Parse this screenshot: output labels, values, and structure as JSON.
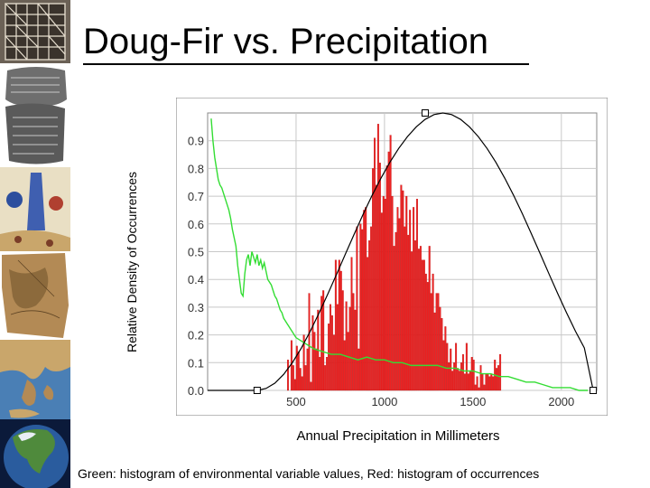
{
  "title": "Doug-Fir vs. Precipitation",
  "caption": "Green: histogram of environmental variable values, Red: histogram of occurrences",
  "sidebar": {
    "thumbnails": [
      "grid-diagram-thumbnail",
      "clay-tablet-thumbnail",
      "medieval-map-thumbnail",
      "parchment-map-thumbnail",
      "greece-satellite-thumbnail",
      "north-america-globe-thumbnail"
    ]
  },
  "colors": {
    "occurrences": "#ee2222",
    "environment": "#33dd33",
    "curve": "#000000",
    "grid": "#c8c8c8"
  },
  "chart_data": {
    "type": "bar",
    "title": "Doug-Fir vs. Precipitation",
    "xlabel": "Annual Precipitation in Millimeters",
    "ylabel": "Relative Density of Occurrences",
    "xlim": [
      0,
      2200
    ],
    "ylim": [
      0,
      1.0
    ],
    "x_ticks": [
      500,
      1000,
      1500,
      2000
    ],
    "x_tick_labels": [
      "500",
      "1000",
      "1500",
      "2000"
    ],
    "y_ticks": [
      0.0,
      0.1,
      0.2,
      0.3,
      0.4,
      0.5,
      0.6,
      0.7,
      0.8,
      0.9
    ],
    "y_tick_labels": [
      "0.0",
      "0.1",
      "0.2",
      "0.3",
      "0.4",
      "0.5",
      "0.6",
      "0.7",
      "0.8",
      "0.9"
    ],
    "grid": true,
    "series": [
      {
        "kind": "bar",
        "bin_start": 450,
        "bin_width": 10,
        "values": [
          0.11,
          0,
          0.18,
          0.09,
          0.04,
          0.16,
          0.14,
          0.08,
          0.05,
          0.2,
          0.09,
          0.15,
          0.35,
          0.03,
          0.27,
          0.21,
          0.15,
          0.29,
          0.12,
          0.34,
          0.36,
          0.09,
          0.12,
          0.24,
          0.31,
          0.27,
          0.2,
          0.47,
          0.31,
          0.47,
          0.43,
          0.36,
          0.18,
          0.32,
          0.21,
          0.3,
          0.48,
          0.35,
          0.29,
          0.59,
          0.15,
          0.6,
          0.58,
          0.65,
          0.66,
          0.48,
          0.54,
          0.59,
          0.8,
          0.91,
          0.74,
          0.96,
          0.82,
          0.64,
          0.7,
          0.69,
          0.81,
          0.86,
          0.92,
          0.7,
          0.52,
          0.57,
          0.66,
          0.62,
          0.74,
          0.72,
          0.59,
          0.7,
          0.56,
          0.65,
          0.5,
          0.66,
          0.54,
          0.69,
          0.51,
          0.52,
          0.47,
          0.47,
          0.42,
          0.39,
          0.52,
          0.35,
          0.42,
          0.28,
          0.35,
          0.35,
          0.3,
          0.26,
          0.18,
          0.23,
          0.17,
          0.1,
          0.15,
          0.07,
          0.1,
          0.17,
          0.08,
          0.07,
          0.1,
          0.13,
          0.06,
          0.17,
          0.06,
          0.07,
          0.12,
          0.11,
          0.02,
          0.05,
          0.01,
          0.09,
          0.06,
          0.02,
          0.06,
          0.06,
          0.05,
          0.06,
          0.05,
          0.11,
          0.08,
          0.09,
          0.13
        ]
      },
      {
        "kind": "line",
        "x": [
          20,
          30,
          40,
          50,
          60,
          70,
          80,
          90,
          100,
          110,
          120,
          130,
          140,
          150,
          160,
          170,
          180,
          190,
          200,
          210,
          220,
          230,
          240,
          250,
          260,
          270,
          280,
          290,
          300,
          310,
          320,
          330,
          340,
          350,
          360,
          370,
          380,
          390,
          400,
          410,
          420,
          430,
          440,
          450,
          460,
          470,
          480,
          490,
          500,
          550,
          600,
          650,
          700,
          750,
          800,
          850,
          900,
          950,
          1000,
          1050,
          1100,
          1150,
          1200,
          1250,
          1300,
          1350,
          1400,
          1450,
          1500,
          1550,
          1600,
          1650,
          1700,
          1750,
          1800,
          1850,
          1900,
          1950,
          2000,
          2050,
          2100,
          2150
        ],
        "y": [
          0.98,
          0.9,
          0.84,
          0.8,
          0.76,
          0.74,
          0.73,
          0.71,
          0.69,
          0.67,
          0.65,
          0.62,
          0.58,
          0.55,
          0.52,
          0.45,
          0.4,
          0.35,
          0.34,
          0.42,
          0.47,
          0.49,
          0.45,
          0.5,
          0.48,
          0.46,
          0.49,
          0.45,
          0.47,
          0.44,
          0.46,
          0.43,
          0.4,
          0.39,
          0.38,
          0.36,
          0.34,
          0.33,
          0.31,
          0.29,
          0.28,
          0.26,
          0.25,
          0.24,
          0.23,
          0.22,
          0.21,
          0.2,
          0.19,
          0.17,
          0.15,
          0.14,
          0.13,
          0.13,
          0.12,
          0.11,
          0.12,
          0.11,
          0.11,
          0.1,
          0.1,
          0.09,
          0.09,
          0.09,
          0.09,
          0.08,
          0.08,
          0.07,
          0.07,
          0.06,
          0.06,
          0.05,
          0.05,
          0.04,
          0.03,
          0.03,
          0.02,
          0.01,
          0.01,
          0.01,
          0.0,
          0.0
        ]
      },
      {
        "kind": "curve",
        "x": [
          280,
          330,
          380,
          430,
          480,
          530,
          580,
          630,
          680,
          730,
          780,
          830,
          880,
          930,
          980,
          1030,
          1080,
          1130,
          1180,
          1230,
          1280,
          1330,
          1380,
          1430,
          1480,
          1530,
          1580,
          1630,
          1680,
          1730,
          1780,
          1830,
          1880,
          1930,
          1980,
          2030,
          2080,
          2130,
          2180
        ],
        "y": [
          0.0,
          0.007,
          0.026,
          0.058,
          0.101,
          0.153,
          0.213,
          0.279,
          0.348,
          0.42,
          0.493,
          0.565,
          0.636,
          0.703,
          0.765,
          0.822,
          0.872,
          0.915,
          0.95,
          0.977,
          0.994,
          1.0,
          0.994,
          0.977,
          0.95,
          0.915,
          0.872,
          0.822,
          0.765,
          0.703,
          0.636,
          0.565,
          0.493,
          0.42,
          0.348,
          0.279,
          0.213,
          0.153,
          0.0
        ]
      }
    ],
    "control_points": [
      {
        "x": 280,
        "y": 0.0
      },
      {
        "x": 1230,
        "y": 1.0
      },
      {
        "x": 2180,
        "y": 0.0
      }
    ]
  }
}
